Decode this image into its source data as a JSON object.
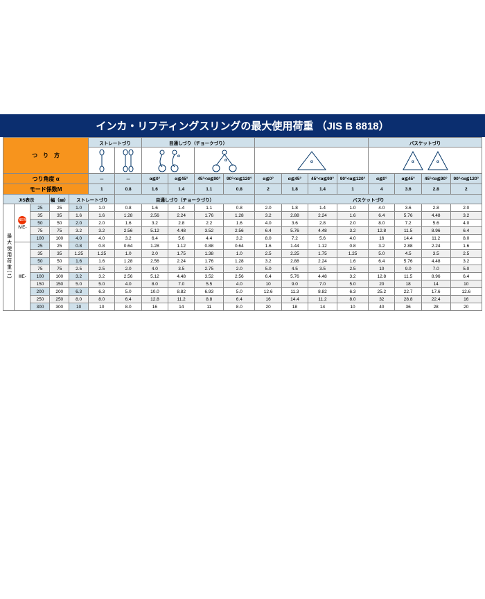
{
  "title": "インカ・リフティングスリングの最大使用荷重 （JIS B 8818）",
  "left_label": "つ　り　方",
  "side_label": "最大使用荷重(t)",
  "section_headers": {
    "straight": "ストレートづり",
    "choke": "目通しづり（チョークづり）",
    "basket": "バスケットづり"
  },
  "angle_row_label": "つり角度 α",
  "mode_row_label": "モード係数M",
  "jis_label": "JIS表示",
  "width_label": "幅（㎜）",
  "sub_straight": "ストレートづり",
  "sub_choke": "目通しづり（チョークづり）",
  "sub_basket": "バスケットづり",
  "angles": [
    "－",
    "－",
    "α≦0°",
    "α≦45°",
    "45°<α≦90°",
    "90°<α≦120°",
    "α≦0°",
    "α≦45°",
    "45°<α≦90°",
    "90°<α≦120°",
    "α≦0°",
    "α≦45°",
    "45°<α≦90°",
    "90°<α≦120°"
  ],
  "mode_coeff": [
    "1",
    "0.8",
    "1.6",
    "1.4",
    "1.1",
    "0.8",
    "2",
    "1.8",
    "1.4",
    "1",
    "4",
    "3.6",
    "2.8",
    "2"
  ],
  "group1_name": "ⅣE-",
  "group2_name": "ⅢE-",
  "new_label": "NEW",
  "rows1": [
    {
      "jis": "25",
      "w": "25",
      "s": "1.0",
      "v": [
        "1.0",
        "0.8",
        "1.6",
        "1.4",
        "1.1",
        "0.8",
        "2.0",
        "1.8",
        "1.4",
        "1.0",
        "4.0",
        "3.6",
        "2.8",
        "2.0"
      ]
    },
    {
      "jis": "35",
      "w": "35",
      "s": "1.6",
      "v": [
        "1.6",
        "1.28",
        "2.56",
        "2.24",
        "1.76",
        "1.28",
        "3.2",
        "2.88",
        "2.24",
        "1.6",
        "6.4",
        "5.76",
        "4.48",
        "3.2"
      ]
    },
    {
      "jis": "50",
      "w": "50",
      "s": "2.0",
      "v": [
        "2.0",
        "1.6",
        "3.2",
        "2.8",
        "2.2",
        "1.6",
        "4.0",
        "3.6",
        "2.8",
        "2.0",
        "8.0",
        "7.2",
        "5.6",
        "4.0"
      ]
    },
    {
      "jis": "75",
      "w": "75",
      "s": "3.2",
      "v": [
        "3.2",
        "2.56",
        "5.12",
        "4.48",
        "3.52",
        "2.56",
        "6.4",
        "5.76",
        "4.48",
        "3.2",
        "12.8",
        "11.5",
        "8.96",
        "6.4"
      ]
    },
    {
      "jis": "100",
      "w": "100",
      "s": "4.0",
      "v": [
        "4.0",
        "3.2",
        "6.4",
        "5.6",
        "4.4",
        "3.2",
        "8.0",
        "7.2",
        "5.6",
        "4.0",
        "16",
        "14.4",
        "11.2",
        "8.0"
      ]
    }
  ],
  "rows2": [
    {
      "jis": "25",
      "w": "25",
      "s": "0.8",
      "v": [
        "0.8",
        "0.64",
        "1.28",
        "1.12",
        "0.88",
        "0.64",
        "1.6",
        "1.44",
        "1.12",
        "0.8",
        "3.2",
        "2.88",
        "2.24",
        "1.6"
      ]
    },
    {
      "jis": "35",
      "w": "35",
      "s": "1.25",
      "v": [
        "1.25",
        "1.0",
        "2.0",
        "1.75",
        "1.38",
        "1.0",
        "2.5",
        "2.25",
        "1.75",
        "1.25",
        "5.0",
        "4.5",
        "3.5",
        "2.5"
      ]
    },
    {
      "jis": "50",
      "w": "50",
      "s": "1.6",
      "v": [
        "1.6",
        "1.28",
        "2.56",
        "2.24",
        "1.76",
        "1.28",
        "3.2",
        "2.88",
        "2.24",
        "1.6",
        "6.4",
        "5.76",
        "4.48",
        "3.2"
      ]
    },
    {
      "jis": "75",
      "w": "75",
      "s": "2.5",
      "v": [
        "2.5",
        "2.0",
        "4.0",
        "3.5",
        "2.75",
        "2.0",
        "5.0",
        "4.5",
        "3.5",
        "2.5",
        "10",
        "9.0",
        "7.0",
        "5.0"
      ]
    },
    {
      "jis": "100",
      "w": "100",
      "s": "3.2",
      "v": [
        "3.2",
        "2.56",
        "5.12",
        "4.48",
        "3.52",
        "2.56",
        "6.4",
        "5.76",
        "4.48",
        "3.2",
        "12.8",
        "11.5",
        "8.96",
        "6.4"
      ]
    },
    {
      "jis": "150",
      "w": "150",
      "s": "5.0",
      "v": [
        "5.0",
        "4.0",
        "8.0",
        "7.0",
        "5.5",
        "4.0",
        "10",
        "9.0",
        "7.0",
        "5.0",
        "20",
        "18",
        "14",
        "10"
      ]
    },
    {
      "jis": "200",
      "w": "200",
      "s": "6.3",
      "v": [
        "6.3",
        "5.0",
        "10.0",
        "8.82",
        "6.93",
        "5.0",
        "12.6",
        "11.3",
        "8.82",
        "6.3",
        "25.2",
        "22.7",
        "17.6",
        "12.6"
      ]
    },
    {
      "jis": "250",
      "w": "250",
      "s": "8.0",
      "v": [
        "8.0",
        "6.4",
        "12.8",
        "11.2",
        "8.8",
        "6.4",
        "16",
        "14.4",
        "11.2",
        "8.0",
        "32",
        "28.8",
        "22.4",
        "16"
      ]
    },
    {
      "jis": "300",
      "w": "300",
      "s": "10",
      "v": [
        "10",
        "8.0",
        "16",
        "14",
        "11",
        "8.0",
        "20",
        "18",
        "14",
        "10",
        "40",
        "36",
        "28",
        "20"
      ]
    }
  ]
}
